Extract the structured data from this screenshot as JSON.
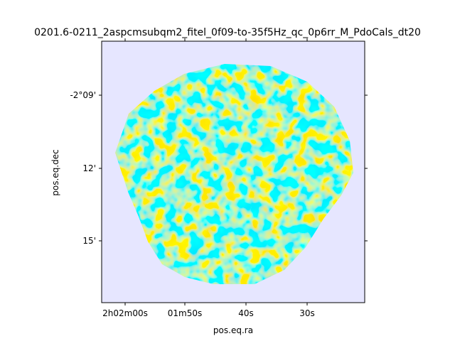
{
  "chart_data": {
    "type": "heatmap",
    "title": "0201.6-0211_2aspcmsubqm2_fitel_0f09-to-35f5Hz_qc_0p6rr_M_PdoCals_dt20",
    "xlabel": "pos.eq.ra",
    "ylabel": "pos.eq.dec",
    "colormap": "bwr",
    "background_color": "#e6e6ff",
    "positive_color": "#ff0000",
    "negative_color": "#0000ff",
    "x_ticks": [
      {
        "label": "2h02m00s"
      },
      {
        "label": "01m50s"
      },
      {
        "label": "40s"
      },
      {
        "label": "30s"
      }
    ],
    "y_ticks": [
      {
        "label": "-2°09'"
      },
      {
        "label": "12'"
      },
      {
        "label": "15'"
      }
    ]
  }
}
